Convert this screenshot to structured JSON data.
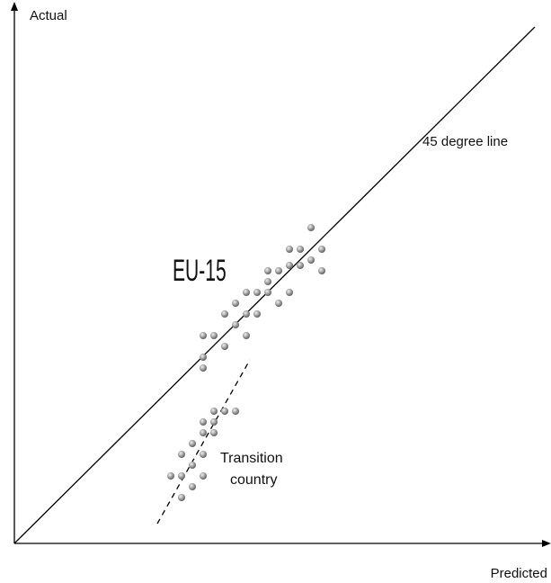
{
  "axes": {
    "y_label": "Actual",
    "x_label": "Predicted"
  },
  "labels": {
    "reference_line": "45 degree line",
    "group_1": "EU-15",
    "group_2": [
      "Transition",
      "country"
    ]
  }
}
